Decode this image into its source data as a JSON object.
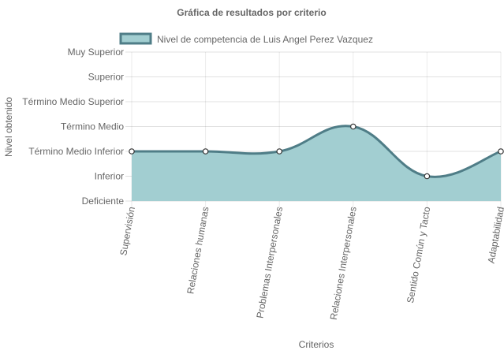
{
  "chart_data": {
    "type": "area",
    "title": "Gráfica de resultados por criterio",
    "xlabel": "Criterios",
    "ylabel": "Nivel obtenido",
    "y_levels": [
      "Deficiente",
      "Inferior",
      "Término Medio Inferior",
      "Término Medio",
      "Término Medio Superior",
      "Superior",
      "Muy Superior"
    ],
    "categories": [
      "Supervisión",
      "Relaciones humanas",
      "Problemas Interpersonales",
      "Relaciones Interpersonales",
      "Sentido Común y Tacto",
      "Adaptabilidad"
    ],
    "series": [
      {
        "name": "Nivel de competencia de Luis Angel Perez Vazquez",
        "values": [
          2,
          2,
          2,
          3,
          1,
          2
        ],
        "fill_color": "#a2ced1",
        "line_color": "#4f7d87"
      }
    ],
    "ylim": [
      0,
      6
    ],
    "grid": true,
    "legend": "top-center",
    "curve": "smooth"
  }
}
